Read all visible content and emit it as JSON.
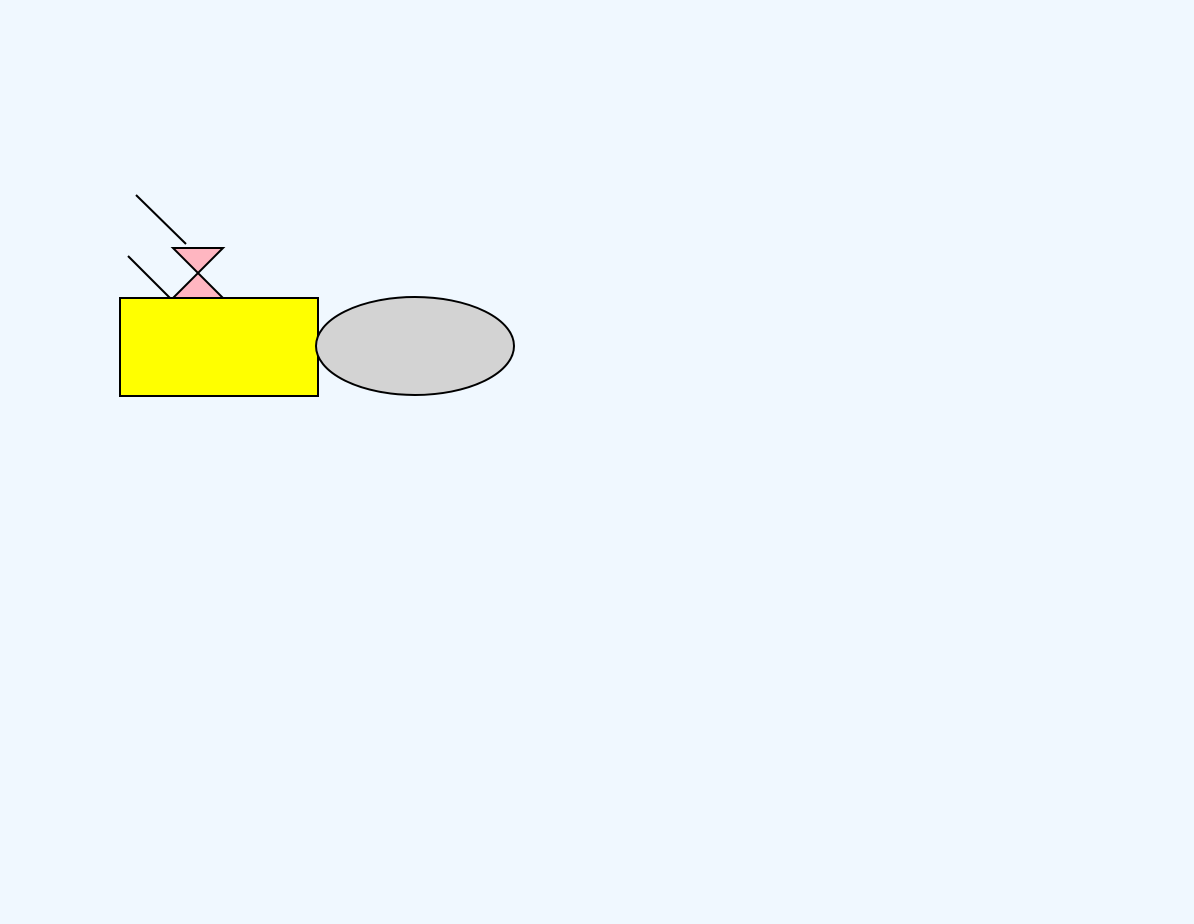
{
  "canvas": {
    "background_color": "#F0F8FF"
  },
  "shapes": {
    "rectangle": {
      "fill_color": "#FFFF00",
      "stroke_color": "#000000"
    },
    "ellipse": {
      "fill_color": "#D3D3D3",
      "stroke_color": "#000000"
    },
    "hourglass": {
      "fill_color": "#FFB6C1",
      "stroke_color": "#000000"
    },
    "lines": {
      "stroke_color": "#000000"
    }
  }
}
